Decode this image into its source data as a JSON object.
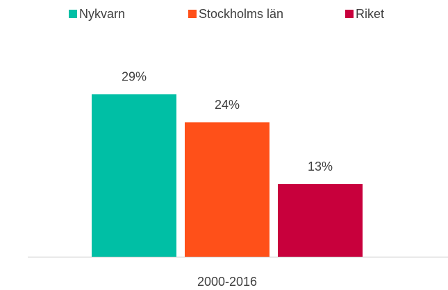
{
  "chart_data": {
    "type": "bar",
    "categories": [
      "2000-2016"
    ],
    "series": [
      {
        "name": "Nykvarn",
        "color": "#00bfa5",
        "values": [
          29
        ],
        "value_labels": [
          "29%"
        ]
      },
      {
        "name": "Stockholms län",
        "color": "#ff5019",
        "values": [
          24
        ],
        "value_labels": [
          "24%"
        ]
      },
      {
        "name": "Riket",
        "color": "#c8003c",
        "values": [
          13
        ],
        "value_labels": [
          "13%"
        ]
      }
    ],
    "legend": "top"
  }
}
